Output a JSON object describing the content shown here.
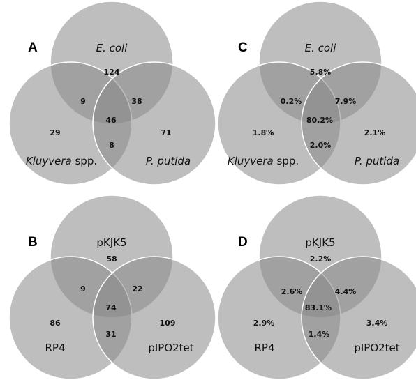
{
  "panels": {
    "A": {
      "label": "A",
      "sets": {
        "top": {
          "italic": "E. coli",
          "plain": ""
        },
        "left": {
          "italic": "Kluyvera",
          "plain": " spp."
        },
        "right": {
          "italic": "P. putida",
          "plain": ""
        }
      },
      "regions": {
        "top_only": "124",
        "left_only": "29",
        "right_only": "71",
        "top_left": "9",
        "top_right": "38",
        "left_right": "8",
        "all": "46"
      }
    },
    "B": {
      "label": "B",
      "sets": {
        "top": {
          "italic": "",
          "plain": "pKJK5"
        },
        "left": {
          "italic": "",
          "plain": "RP4"
        },
        "right": {
          "italic": "",
          "plain": "pIPO2tet"
        }
      },
      "regions": {
        "top_only": "58",
        "left_only": "86",
        "right_only": "109",
        "top_left": "9",
        "top_right": "22",
        "left_right": "31",
        "all": "74"
      }
    },
    "C": {
      "label": "C",
      "sets": {
        "top": {
          "italic": "E. coli",
          "plain": ""
        },
        "left": {
          "italic": "Kluyvera",
          "plain": " spp."
        },
        "right": {
          "italic": "P. putida",
          "plain": ""
        }
      },
      "regions": {
        "top_only": "5.8%",
        "left_only": "1.8%",
        "right_only": "2.1%",
        "top_left": "0.2%",
        "top_right": "7.9%",
        "left_right": "2.0%",
        "all": "80.2%"
      }
    },
    "D": {
      "label": "D",
      "sets": {
        "top": {
          "italic": "",
          "plain": "pKJK5"
        },
        "left": {
          "italic": "",
          "plain": "RP4"
        },
        "right": {
          "italic": "",
          "plain": "pIPO2tet"
        }
      },
      "regions": {
        "top_only": "2.2%",
        "left_only": "2.9%",
        "right_only": "3.4%",
        "top_left": "2.6%",
        "top_right": "4.4%",
        "left_right": "1.4%",
        "all": "83.1%"
      }
    }
  }
}
